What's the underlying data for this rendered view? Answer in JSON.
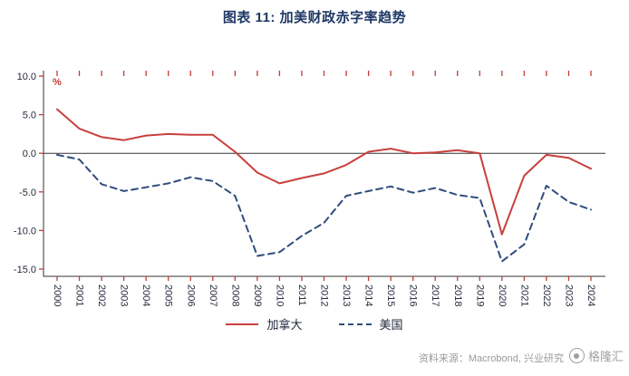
{
  "title": "图表 11: 加美财政赤字率趋势",
  "chart_data": {
    "type": "line",
    "title": "图表 11: 加美财政赤字率趋势",
    "unit_label": "%",
    "xlabel": "",
    "ylabel": "%",
    "ylim": [
      -15,
      10
    ],
    "y_ticks": [
      10,
      5,
      0,
      -5,
      -10,
      -15
    ],
    "grid": false,
    "legend_position": "bottom",
    "categories": [
      "2000",
      "2001",
      "2002",
      "2003",
      "2004",
      "2005",
      "2006",
      "2007",
      "2008",
      "2009",
      "2010",
      "2011",
      "2012",
      "2013",
      "2014",
      "2015",
      "2016",
      "2017",
      "2018",
      "2019",
      "2020",
      "2021",
      "2022",
      "2023",
      "2024"
    ],
    "series": [
      {
        "key": "canada",
        "name": "加拿大",
        "style": "solid",
        "color": "#c8403e",
        "values": [
          5.7,
          3.2,
          2.1,
          1.7,
          2.3,
          2.5,
          2.4,
          2.4,
          0.2,
          -2.5,
          -3.9,
          -3.2,
          -2.6,
          -1.5,
          0.2,
          0.6,
          0.0,
          0.1,
          0.4,
          0.0,
          -10.5,
          -2.9,
          -0.2,
          -0.6,
          -2.0
        ]
      },
      {
        "key": "us",
        "name": "美国",
        "style": "dashed",
        "color": "#2e4d7d",
        "values": [
          -0.2,
          -0.8,
          -4.0,
          -4.9,
          -4.4,
          -3.9,
          -3.1,
          -3.6,
          -5.5,
          -13.3,
          -12.8,
          -10.7,
          -9.0,
          -5.5,
          -4.9,
          -4.3,
          -5.1,
          -4.5,
          -5.4,
          -5.8,
          -14.0,
          -11.8,
          -4.2,
          -6.3,
          -7.3
        ]
      }
    ]
  },
  "legend": {
    "items": [
      {
        "label": "加拿大"
      },
      {
        "label": "美国"
      }
    ]
  },
  "source": {
    "text": "资料来源：Macrobond, 兴业研究"
  },
  "watermark": {
    "text": "格隆汇"
  },
  "colors": {
    "title": "#1f3864",
    "canada_line": "#c8403e",
    "us_line": "#2e4d7d",
    "tick": "#c43b38",
    "axis": "#333333",
    "tick_label": "#262c3d",
    "source_text": "#9a9a9a"
  }
}
